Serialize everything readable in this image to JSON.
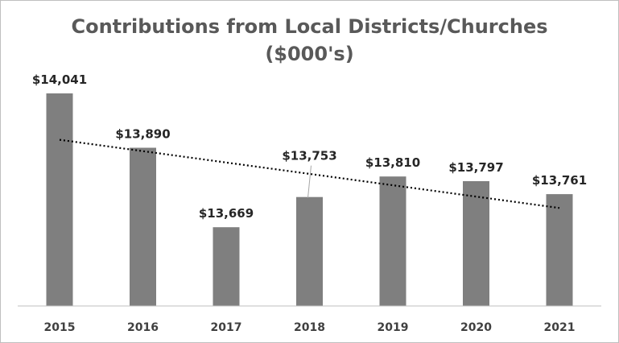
{
  "chart_data": {
    "type": "bar",
    "title_line1": "Contributions from Local Districts/Churches",
    "title_line2": "($000's)",
    "categories": [
      "2015",
      "2016",
      "2017",
      "2018",
      "2019",
      "2020",
      "2021"
    ],
    "values": [
      14041,
      13890,
      13669,
      13753,
      13810,
      13797,
      13761
    ],
    "value_labels": [
      "$14,041",
      "$13,890",
      "$13,669",
      "$13,753",
      "$13,810",
      "$13,797",
      "$13,761"
    ],
    "ylim": [
      13450,
      14050
    ],
    "bar_color": "#7f7f7f",
    "trendline": "linear",
    "grid": false,
    "legend": "none",
    "xlabel": "",
    "ylabel": ""
  }
}
